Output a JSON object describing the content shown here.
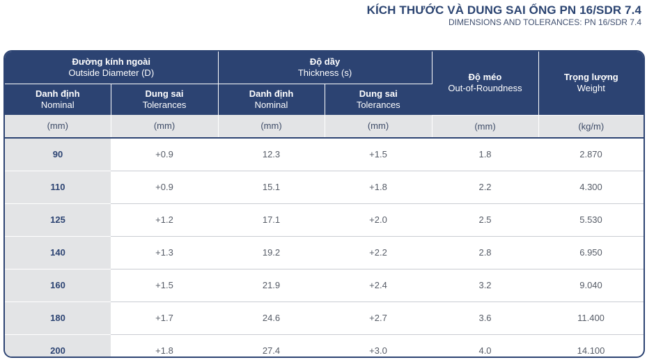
{
  "title": {
    "main": "KÍCH THƯỚC VÀ DUNG SAI ỐNG PN 16/SDR 7.4",
    "sub": "DIMENSIONS AND TOLERANCES: PN 16/SDR 7.4"
  },
  "header": {
    "outside_diameter": {
      "vn": "Đường kính ngoài",
      "en": "Outside Diameter (D)"
    },
    "thickness": {
      "vn": "Độ dầy",
      "en": "Thickness (s)"
    },
    "roundness": {
      "vn": "Độ méo",
      "en": "Out-of-Roundness"
    },
    "weight": {
      "vn": "Trọng lượng",
      "en": "Weight"
    },
    "nominal": {
      "vn": "Danh định",
      "en": "Nominal"
    },
    "tolerances": {
      "vn": "Dung sai",
      "en": "Tolerances"
    }
  },
  "units": [
    "(mm)",
    "(mm)",
    "(mm)",
    "(mm)",
    "(mm)",
    "(kg/m)"
  ],
  "rows": [
    [
      "90",
      "+0.9",
      "12.3",
      "+1.5",
      "1.8",
      "2.870"
    ],
    [
      "110",
      "+0.9",
      "15.1",
      "+1.8",
      "2.2",
      "4.300"
    ],
    [
      "125",
      "+1.2",
      "17.1",
      "+2.0",
      "2.5",
      "5.530"
    ],
    [
      "140",
      "+1.3",
      "19.2",
      "+2.2",
      "2.8",
      "6.950"
    ],
    [
      "160",
      "+1.5",
      "21.9",
      "+2.4",
      "3.2",
      "9.040"
    ],
    [
      "180",
      "+1.7",
      "24.6",
      "+2.7",
      "3.6",
      "11.400"
    ],
    [
      "200",
      "+1.8",
      "27.4",
      "+3.0",
      "4.0",
      "14.100"
    ]
  ]
}
